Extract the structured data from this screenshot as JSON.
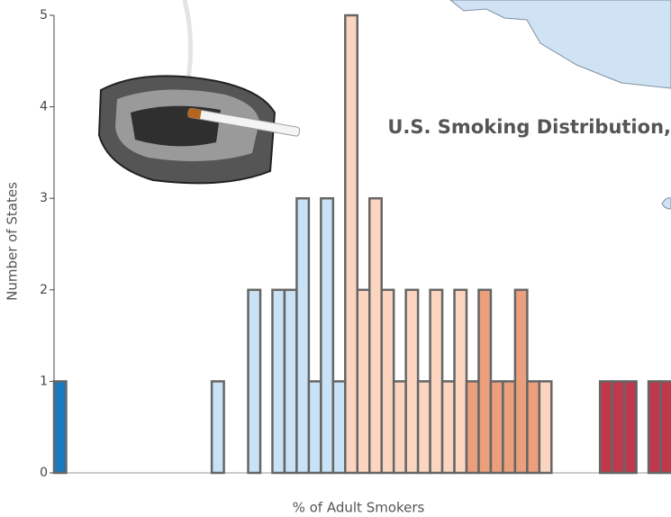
{
  "chart_data": {
    "type": "histogram",
    "title": "U.S. Smoking Distribution,",
    "x_label": "% of Adult Smokers",
    "y_label": "Number of States",
    "bins": [
      9.0,
      9.25,
      9.5,
      9.75,
      10.0,
      10.25,
      10.5,
      10.75,
      11.0,
      11.25,
      11.5,
      11.75,
      12.0,
      12.25,
      12.5,
      12.75,
      13.0,
      13.25,
      13.5,
      13.75,
      14.0,
      14.25,
      14.5,
      14.75,
      15.0,
      15.25,
      15.5,
      15.75,
      16.0,
      16.25,
      16.5,
      16.75,
      17.0,
      17.25,
      17.5,
      17.75,
      18.0,
      18.25,
      18.5,
      18.75,
      19.0,
      19.25,
      19.5,
      19.75,
      20.0,
      20.25,
      20.5,
      20.75,
      21.0,
      21.25,
      21.5,
      21.75
    ],
    "values": [
      1,
      0,
      0,
      0,
      0,
      0,
      0,
      0,
      0,
      0,
      0,
      0,
      0,
      1,
      0,
      0,
      2,
      0,
      2,
      2,
      3,
      1,
      3,
      1,
      5,
      2,
      3,
      2,
      1,
      2,
      1,
      2,
      1,
      2,
      1,
      2,
      1,
      1,
      2,
      1,
      1,
      0,
      0,
      0,
      0,
      1,
      1,
      1,
      0,
      1,
      1
    ],
    "colors": [
      "#1a7abf",
      "#c9e2f5",
      "#c9e2f5",
      "#c9e2f5",
      "#c9e2f5",
      "#c9e2f5",
      "#c9e2f5",
      "#c9e2f5",
      "#c9e2f5",
      "#c9e2f5",
      "#c9e2f5",
      "#c9e2f5",
      "#c9e2f5",
      "#c9e2f5",
      "#c9e2f5",
      "#c9e2f5",
      "#c9e2f5",
      "#c9e2f5",
      "#c9e2f5",
      "#c9e2f5",
      "#c9e2f5",
      "#c9e2f5",
      "#c9e2f5",
      "#c9e2f5",
      "#fbd5c0",
      "#fbd5c0",
      "#fbd5c0",
      "#fbd5c0",
      "#fbd5c0",
      "#fbd5c0",
      "#fbd5c0",
      "#fbd5c0",
      "#fbd5c0",
      "#fbd5c0",
      "#eb9f7c",
      "#eb9f7c",
      "#eb9f7c",
      "#eb9f7c",
      "#eb9f7c",
      "#eb9f7c",
      "#fbd5c0",
      "#c0384b",
      "#c0384b",
      "#c0384b",
      "#c0384b",
      "#c0384b",
      "#c0384b",
      "#c0384b",
      "#c0384b",
      "#c0384b",
      "#c0384b"
    ],
    "xlim": [
      9.0,
      21.75
    ],
    "ylim": [
      0,
      5
    ],
    "yticks": [
      0,
      1,
      2,
      3,
      4,
      5
    ]
  }
}
